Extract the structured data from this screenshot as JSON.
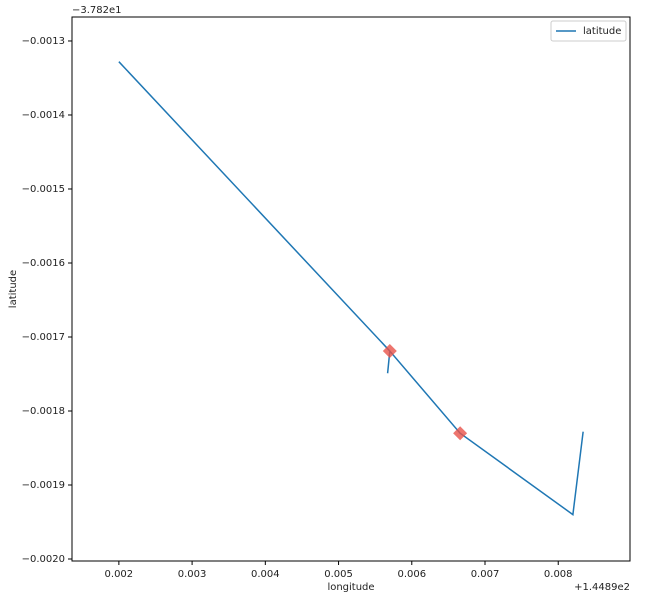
{
  "chart_data": {
    "type": "line",
    "x_label": "longitude",
    "y_label": "latitude",
    "x_offset_label": "+1.4489e2",
    "y_offset_label": "−3.782e1",
    "x": [
      0.002,
      0.0057,
      0.00567,
      0.0057,
      0.00666,
      0.0082,
      0.00834
    ],
    "series": [
      {
        "name": "latitude",
        "color": "#1f77b4",
        "values": [
          -0.001328,
          -0.001719,
          -0.001749,
          -0.001719,
          -0.00183,
          -0.00194,
          -0.001828
        ]
      }
    ],
    "highlights": {
      "color": "#e8534a",
      "x": [
        0.0057,
        0.00666
      ],
      "y": [
        -0.001719,
        -0.00183
      ]
    },
    "xlim": [
      0.00136,
      0.00898
    ],
    "ylim": [
      -0.0020027,
      -0.0012676
    ],
    "xticks": [
      0.002,
      0.003,
      0.004,
      0.005,
      0.006,
      0.007,
      0.008
    ],
    "yticks": [
      {
        "value": -0.0013,
        "label": "−0.0013"
      },
      {
        "value": -0.0014,
        "label": "−0.0014"
      },
      {
        "value": -0.0015,
        "label": "−0.0015"
      },
      {
        "value": -0.0016,
        "label": "−0.0016"
      },
      {
        "value": -0.0017,
        "label": "−0.0017"
      },
      {
        "value": -0.0018,
        "label": "−0.0018"
      },
      {
        "value": -0.0019,
        "label": "−0.0019"
      },
      {
        "value": -0.002,
        "label": "−0.0020"
      }
    ],
    "grid": false,
    "legend": "upper right"
  }
}
